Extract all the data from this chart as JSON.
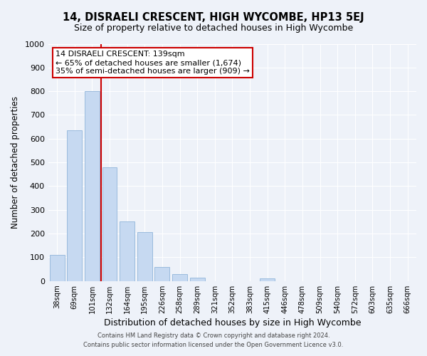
{
  "title": "14, DISRAELI CRESCENT, HIGH WYCOMBE, HP13 5EJ",
  "subtitle": "Size of property relative to detached houses in High Wycombe",
  "xlabel": "Distribution of detached houses by size in High Wycombe",
  "ylabel": "Number of detached properties",
  "bar_labels": [
    "38sqm",
    "69sqm",
    "101sqm",
    "132sqm",
    "164sqm",
    "195sqm",
    "226sqm",
    "258sqm",
    "289sqm",
    "321sqm",
    "352sqm",
    "383sqm",
    "415sqm",
    "446sqm",
    "478sqm",
    "509sqm",
    "540sqm",
    "572sqm",
    "603sqm",
    "635sqm",
    "666sqm"
  ],
  "bar_values": [
    110,
    635,
    800,
    480,
    250,
    205,
    60,
    28,
    15,
    0,
    0,
    0,
    10,
    0,
    0,
    0,
    0,
    0,
    0,
    0,
    0
  ],
  "bar_color": "#c6d9f1",
  "bar_edge_color": "#8fb4d9",
  "vline_color": "#cc0000",
  "annotation_title": "14 DISRAELI CRESCENT: 139sqm",
  "annotation_line1": "← 65% of detached houses are smaller (1,674)",
  "annotation_line2": "35% of semi-detached houses are larger (909) →",
  "annotation_box_facecolor": "#ffffff",
  "annotation_box_edgecolor": "#cc0000",
  "ylim": [
    0,
    1000
  ],
  "yticks": [
    0,
    100,
    200,
    300,
    400,
    500,
    600,
    700,
    800,
    900,
    1000
  ],
  "footer1": "Contains HM Land Registry data © Crown copyright and database right 2024.",
  "footer2": "Contains public sector information licensed under the Open Government Licence v3.0.",
  "background_color": "#eef2f9",
  "grid_color": "#ffffff"
}
